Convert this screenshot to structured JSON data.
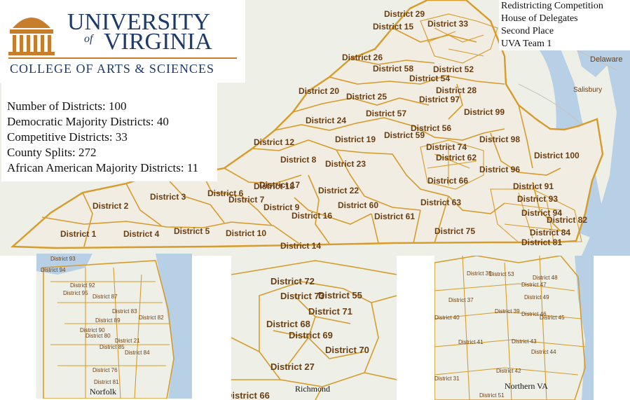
{
  "logo": {
    "university": "UNIVERSITY",
    "of": "of",
    "virginia": "VIRGINIA",
    "college": "COLLEGE OF ARTS & SCIENCES"
  },
  "stats": [
    "Number of Districts: 100",
    "Democratic Majority Districts: 40",
    "Competitive Districts:  33",
    "County Splits:  272",
    "African American Majority Districts: 11"
  ],
  "competition": [
    "Redistricting Competition",
    "House of Delegates",
    "Second Place",
    "UVA Team 1"
  ],
  "basemap_labels": {
    "delaware": "Delaware",
    "salisbury": "Salisbury"
  },
  "main_map_labels": [
    "District 29",
    "District 15",
    "District 33",
    "District 26",
    "District 58",
    "District 52",
    "District 54",
    "District 20",
    "District 25",
    "District 28",
    "District 97",
    "District 57",
    "District 99",
    "District 24",
    "District 56",
    "District 59",
    "District 19",
    "District 12",
    "District 98",
    "District 74",
    "District 8",
    "District 23",
    "District 96",
    "District 100",
    "District 66",
    "District 17",
    "District 6",
    "District 22",
    "District 91",
    "District 3",
    "District 7",
    "District 2",
    "District 60",
    "District 63",
    "District 9",
    "District 16",
    "District 61",
    "District 93",
    "District 5",
    "District 4",
    "District 1",
    "District 10",
    "District 75",
    "District 82",
    "District 14",
    "District 81",
    "District 18",
    "District 62",
    "District 84",
    "District 94"
  ],
  "insets": {
    "norfolk": {
      "caption": "Norfolk",
      "labels": [
        "District 93",
        "District 94",
        "District 92",
        "District 95",
        "District 87",
        "District 83",
        "District 89",
        "District 82",
        "District 90",
        "District 80",
        "District 21",
        "District 85",
        "District 84",
        "District 76",
        "District 81"
      ]
    },
    "richmond": {
      "caption": "Richmond",
      "labels": [
        "District 72",
        "District 73",
        "District 55",
        "District 71",
        "District 68",
        "District 69",
        "District 70",
        "District 27",
        "District 66"
      ]
    },
    "northern_va": {
      "caption": "Northern VA",
      "labels": [
        "District 35",
        "District 53",
        "District 48",
        "District 47",
        "District 37",
        "District 49",
        "District 40",
        "District 39",
        "District 46",
        "District 45",
        "District 41",
        "District 43",
        "District 44",
        "District 42",
        "District 31",
        "District 51"
      ]
    }
  }
}
